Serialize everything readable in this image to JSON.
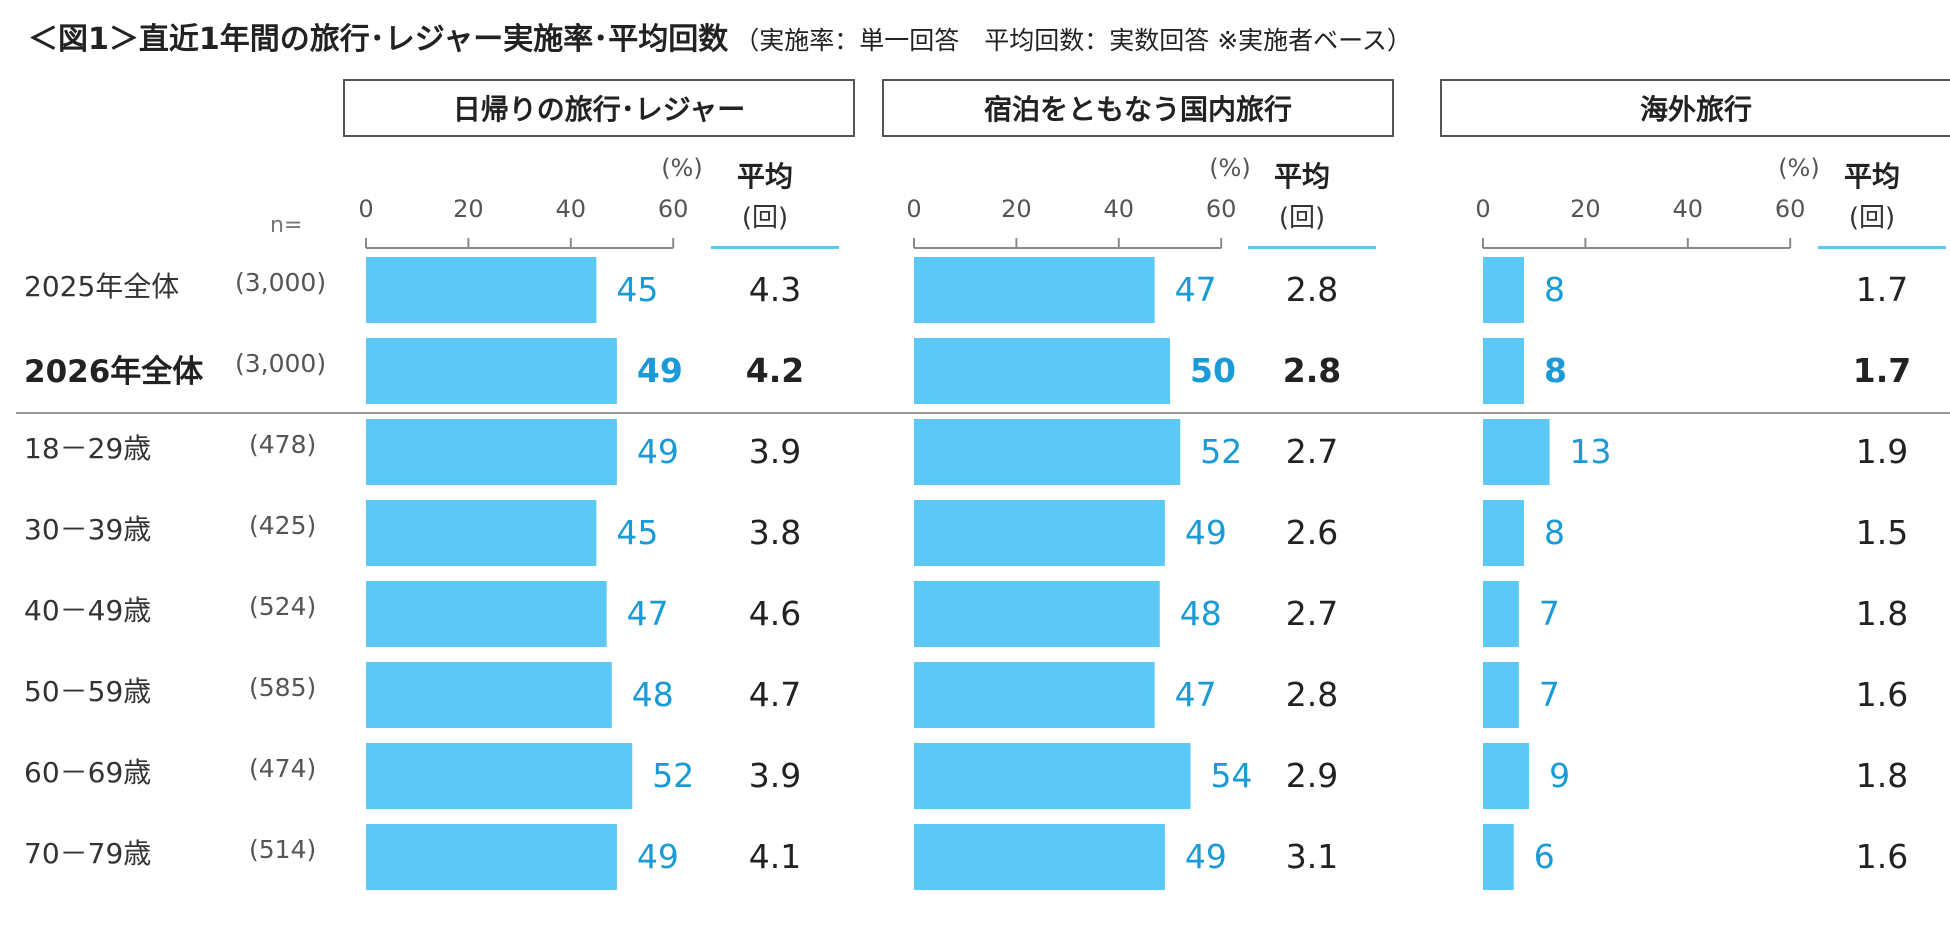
{
  "title": {
    "main": "＜図1＞直近1年間の旅行･レジャー実施率･平均回数",
    "note": "（実施率：単一回答　平均回数：実数回答 ※実施者ベース）"
  },
  "n_label": "n=",
  "percent_unit": "(%)",
  "avg_header": "平均",
  "avg_unit": "(回)",
  "colors": {
    "bar": "#5bc8f5",
    "value_text": "#1a9ad6",
    "axis": "#888888"
  },
  "chart_data": {
    "type": "bar",
    "orientation": "horizontal",
    "xlim": [
      0,
      60
    ],
    "ticks": [
      0,
      20,
      40,
      60
    ],
    "categories": [
      "2025年全体",
      "2026年全体",
      "18－29歳",
      "30－39歳",
      "40－49歳",
      "50－59歳",
      "60－69歳",
      "70－79歳"
    ],
    "sample_sizes": [
      "(3,000)",
      "(3,000)",
      "(478)",
      "(425)",
      "(524)",
      "(585)",
      "(474)",
      "(514)"
    ],
    "highlight_index": 1,
    "panels": [
      {
        "name": "日帰りの旅行･レジャー",
        "values": [
          45,
          49,
          49,
          45,
          47,
          48,
          52,
          49
        ],
        "averages": [
          "4.3",
          "4.2",
          "3.9",
          "3.8",
          "4.6",
          "4.7",
          "3.9",
          "4.1"
        ]
      },
      {
        "name": "宿泊をともなう国内旅行",
        "values": [
          47,
          50,
          52,
          49,
          48,
          47,
          54,
          49
        ],
        "averages": [
          "2.8",
          "2.8",
          "2.7",
          "2.6",
          "2.7",
          "2.8",
          "2.9",
          "3.1"
        ]
      },
      {
        "name": "海外旅行",
        "values": [
          8,
          8,
          13,
          8,
          7,
          7,
          9,
          6
        ],
        "averages": [
          "1.7",
          "1.7",
          "1.9",
          "1.5",
          "1.8",
          "1.6",
          "1.8",
          "1.6"
        ]
      }
    ]
  }
}
